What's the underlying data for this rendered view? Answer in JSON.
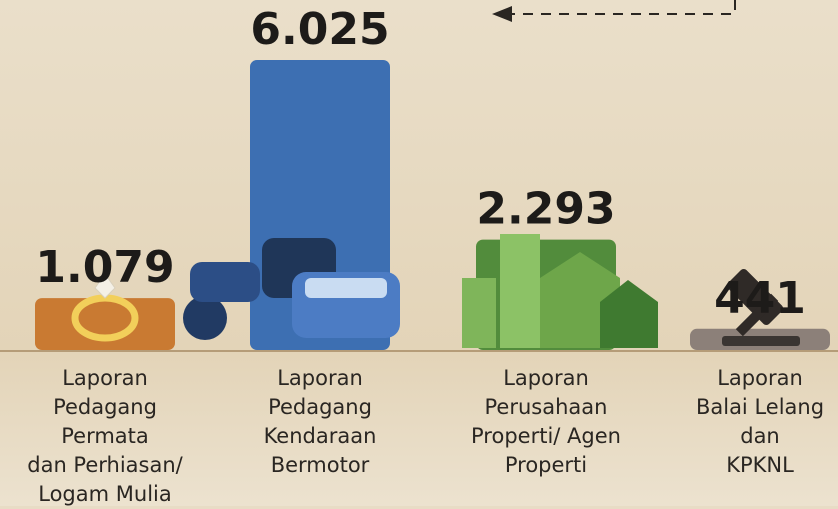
{
  "chart_data": {
    "type": "bar",
    "categories": [
      "Laporan\nPedagang\nPermata\ndan Perhiasan/\nLogam Mulia",
      "Laporan\nPedagang\nKendaraan\nBermotor",
      "Laporan\nPerusahaan\nProperti/ Agen\nProperti",
      "Laporan\nBalai Lelang\ndan\nKPKNL"
    ],
    "values": [
      1079,
      6025,
      2293,
      441
    ],
    "value_labels": [
      "1.079",
      "6.025",
      "2.293",
      "441"
    ],
    "colors": [
      "#c97a32",
      "#3d6fb2",
      "#528c3c",
      "#8c8079"
    ]
  }
}
